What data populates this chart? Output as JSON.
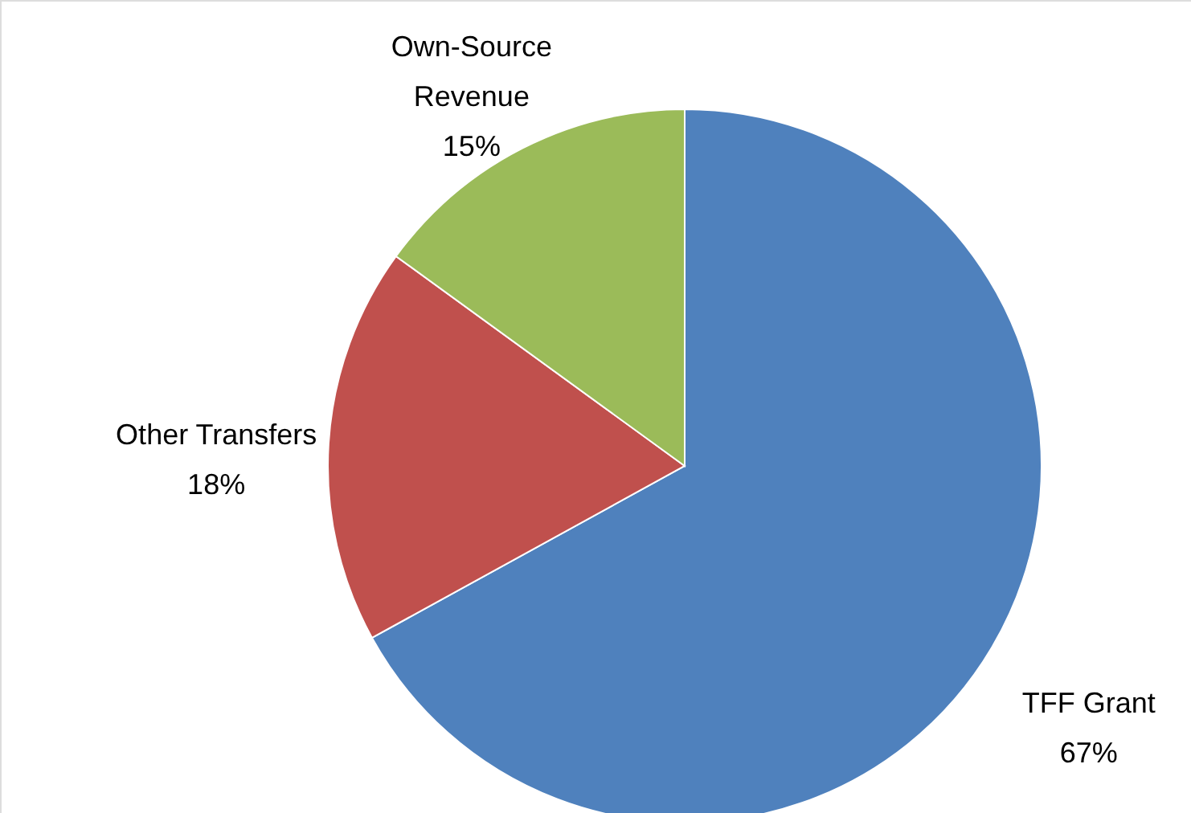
{
  "chart_data": {
    "type": "pie",
    "categories": [
      "TFF Grant",
      "Other Transfers",
      "Own-Source Revenue"
    ],
    "values": [
      67,
      18,
      15
    ],
    "value_labels": [
      "67%",
      "18%",
      "15%"
    ],
    "colors": [
      "#4f81bd",
      "#c0504d",
      "#9bbb59"
    ]
  }
}
